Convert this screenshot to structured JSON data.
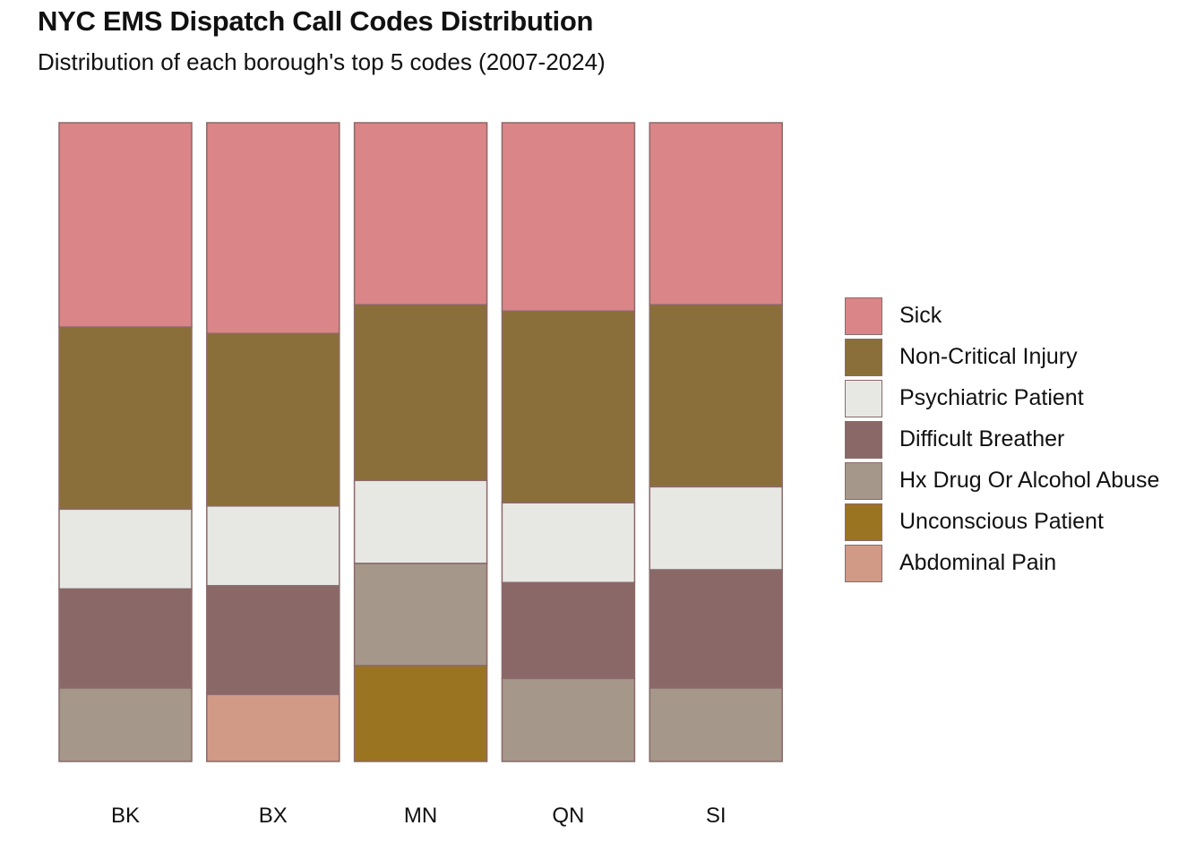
{
  "chart_data": {
    "type": "bar",
    "stacked": true,
    "normalized": true,
    "title": "NYC EMS Dispatch Call Codes Distribution",
    "subtitle": "Distribution of each borough's top 5 codes (2007-2024)",
    "xlabel": "",
    "ylabel": "",
    "ylim": [
      0,
      1
    ],
    "grid": false,
    "legend_position": "right",
    "categories": [
      "BK",
      "BX",
      "MN",
      "QN",
      "SI"
    ],
    "series": [
      {
        "name": "Sick",
        "color": "#DA8587",
        "values": [
          0.32,
          0.33,
          0.285,
          0.295,
          0.285
        ]
      },
      {
        "name": "Non-Critical Injury",
        "color": "#8B6F3A",
        "values": [
          0.285,
          0.27,
          0.275,
          0.3,
          0.285
        ]
      },
      {
        "name": "Psychiatric Patient",
        "color": "#E7E8E4",
        "values": [
          0.125,
          0.125,
          0.13,
          0.125,
          0.13
        ]
      },
      {
        "name": "Difficult Breather",
        "color": "#8B6868",
        "values": [
          0.155,
          0.17,
          0,
          0.15,
          0.185
        ]
      },
      {
        "name": "Hx Drug Or Alcohol Abuse",
        "color": "#A59789",
        "values": [
          0.115,
          0,
          0.16,
          0.13,
          0.115
        ]
      },
      {
        "name": "Unconscious Patient",
        "color": "#9B7422",
        "values": [
          0,
          0,
          0.15,
          0,
          0
        ]
      },
      {
        "name": "Abdominal Pain",
        "color": "#D19A87",
        "values": [
          0,
          0.105,
          0,
          0,
          0
        ]
      }
    ]
  }
}
